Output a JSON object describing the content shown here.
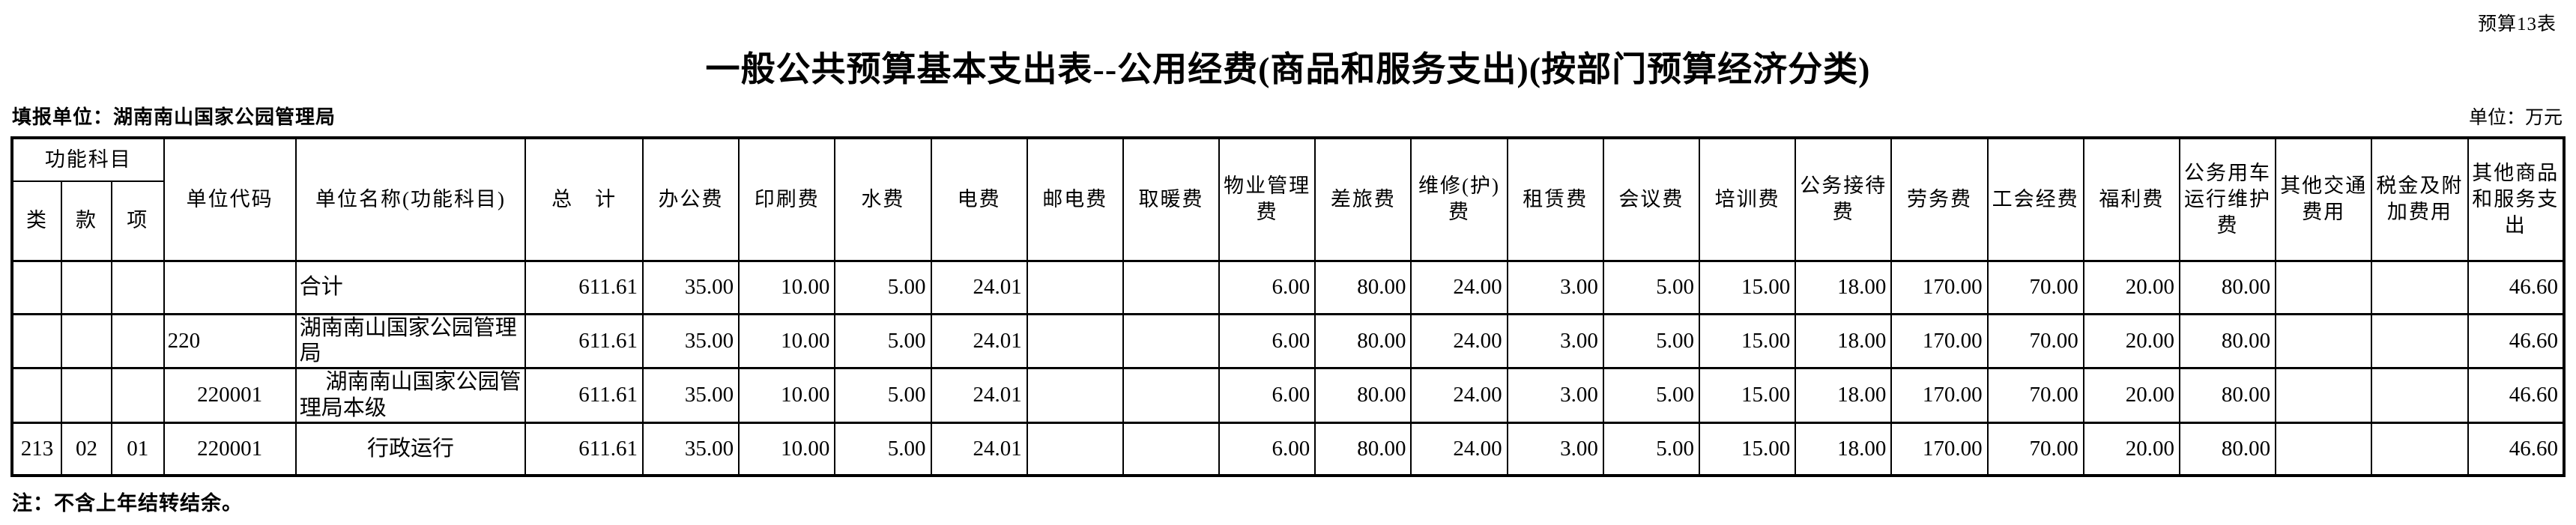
{
  "meta": {
    "sheet_tag": "预算13表",
    "title": "一般公共预算基本支出表--公用经费(商品和服务支出)(按部门预算经济分类)",
    "reporting_unit": "填报单位：湖南南山国家公园管理局",
    "unit_note": "单位：万元",
    "footnote": "注：不含上年结转结余。"
  },
  "table": {
    "function_header": "功能科目",
    "function_sub_headers": [
      "类",
      "款",
      "项"
    ],
    "column_headers": [
      "单位代码",
      "单位名称(功能科目)",
      "总　计",
      "办公费",
      "印刷费",
      "水费",
      "电费",
      "邮电费",
      "取暖费",
      "物业管理\n费",
      "差旅费",
      "维修(护)\n费",
      "租赁费",
      "会议费",
      "培训费",
      "公务接待\n费",
      "劳务费",
      "工会经费",
      "福利费",
      "公务用车\n运行维护\n费",
      "其他交通\n费用",
      "税金及附\n加费用",
      "其他商品\n和服务支\n出"
    ],
    "rows": [
      {
        "lei": "",
        "kuan": "",
        "xiang": "",
        "code": "",
        "code_align": "left",
        "name": "合计",
        "name_align": "left",
        "name_indent": false,
        "values": [
          "611.61",
          "35.00",
          "10.00",
          "5.00",
          "24.01",
          "",
          "",
          "6.00",
          "80.00",
          "24.00",
          "3.00",
          "5.00",
          "15.00",
          "18.00",
          "170.00",
          "70.00",
          "20.00",
          "80.00",
          "",
          "",
          "46.60"
        ]
      },
      {
        "lei": "",
        "kuan": "",
        "xiang": "",
        "code": "220",
        "code_align": "left",
        "name": "湖南南山国家公园管理\n局",
        "name_align": "left",
        "name_indent": false,
        "values": [
          "611.61",
          "35.00",
          "10.00",
          "5.00",
          "24.01",
          "",
          "",
          "6.00",
          "80.00",
          "24.00",
          "3.00",
          "5.00",
          "15.00",
          "18.00",
          "170.00",
          "70.00",
          "20.00",
          "80.00",
          "",
          "",
          "46.60"
        ]
      },
      {
        "lei": "",
        "kuan": "",
        "xiang": "",
        "code": "220001",
        "code_align": "center",
        "name": "湖南南山国家公园管\n理局本级",
        "name_align": "left",
        "name_indent": true,
        "values": [
          "611.61",
          "35.00",
          "10.00",
          "5.00",
          "24.01",
          "",
          "",
          "6.00",
          "80.00",
          "24.00",
          "3.00",
          "5.00",
          "15.00",
          "18.00",
          "170.00",
          "70.00",
          "20.00",
          "80.00",
          "",
          "",
          "46.60"
        ]
      },
      {
        "lei": "213",
        "kuan": "02",
        "xiang": "01",
        "code": "220001",
        "code_align": "center",
        "name": "行政运行",
        "name_align": "center",
        "name_indent": false,
        "values": [
          "611.61",
          "35.00",
          "10.00",
          "5.00",
          "24.01",
          "",
          "",
          "6.00",
          "80.00",
          "24.00",
          "3.00",
          "5.00",
          "15.00",
          "18.00",
          "170.00",
          "70.00",
          "20.00",
          "80.00",
          "",
          "",
          "46.60"
        ]
      }
    ]
  }
}
